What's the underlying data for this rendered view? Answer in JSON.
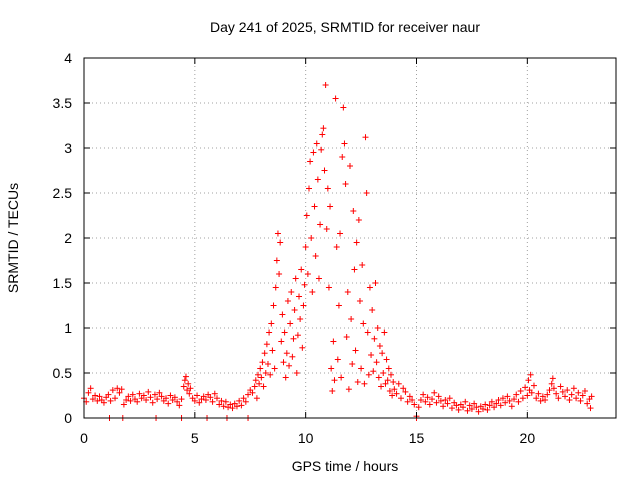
{
  "chart_data": {
    "type": "scatter",
    "title": "Day 241 of 2025, SRMTID for receiver naur",
    "xlabel": "GPS time / hours",
    "ylabel": "SRMTID / TECUs",
    "xlim": [
      0,
      24
    ],
    "ylim": [
      0,
      4
    ],
    "xticks": [
      0,
      5,
      10,
      15,
      20
    ],
    "xtick_labels": [
      "0",
      "5",
      "10",
      "15",
      "20"
    ],
    "yticks": [
      0,
      0.5,
      1,
      1.5,
      2,
      2.5,
      3,
      3.5,
      4
    ],
    "ytick_labels": [
      "0",
      "0.5",
      "1",
      "1.5",
      "2",
      "2.5",
      "3",
      "3.5",
      "4"
    ],
    "grid": true,
    "marker": "plus",
    "marker_color": "#ff0000",
    "series": [
      {
        "name": "SRMTID",
        "points": [
          [
            0.0,
            0.22
          ],
          [
            0.1,
            0.18
          ],
          [
            0.2,
            0.28
          ],
          [
            0.3,
            0.33
          ],
          [
            0.4,
            0.21
          ],
          [
            0.5,
            0.25
          ],
          [
            0.6,
            0.19
          ],
          [
            0.7,
            0.24
          ],
          [
            0.8,
            0.2
          ],
          [
            0.9,
            0.17
          ],
          [
            1.0,
            0.23
          ],
          [
            1.1,
            0.26
          ],
          [
            1.2,
            0.19
          ],
          [
            1.3,
            0.31
          ],
          [
            1.4,
            0.22
          ],
          [
            1.5,
            0.33
          ],
          [
            1.6,
            0.28
          ],
          [
            1.7,
            0.32
          ],
          [
            1.8,
            0.15
          ],
          [
            1.9,
            0.2
          ],
          [
            2.0,
            0.24
          ],
          [
            2.1,
            0.19
          ],
          [
            2.2,
            0.26
          ],
          [
            2.3,
            0.21
          ],
          [
            2.4,
            0.18
          ],
          [
            2.5,
            0.27
          ],
          [
            2.6,
            0.22
          ],
          [
            2.7,
            0.25
          ],
          [
            2.8,
            0.2
          ],
          [
            2.9,
            0.29
          ],
          [
            3.0,
            0.23
          ],
          [
            3.1,
            0.17
          ],
          [
            3.2,
            0.26
          ],
          [
            3.3,
            0.21
          ],
          [
            3.4,
            0.28
          ],
          [
            3.5,
            0.24
          ],
          [
            3.6,
            0.19
          ],
          [
            3.7,
            0.22
          ],
          [
            3.8,
            0.16
          ],
          [
            3.9,
            0.25
          ],
          [
            4.0,
            0.2
          ],
          [
            4.1,
            0.23
          ],
          [
            4.2,
            0.18
          ],
          [
            4.3,
            0.14
          ],
          [
            4.4,
            0.21
          ],
          [
            4.5,
            0.35
          ],
          [
            4.55,
            0.42
          ],
          [
            4.6,
            0.46
          ],
          [
            4.65,
            0.31
          ],
          [
            4.7,
            0.38
          ],
          [
            4.75,
            0.27
          ],
          [
            4.8,
            0.33
          ],
          [
            4.9,
            0.22
          ],
          [
            5.0,
            0.19
          ],
          [
            5.1,
            0.25
          ],
          [
            5.2,
            0.17
          ],
          [
            5.3,
            0.21
          ],
          [
            5.4,
            0.24
          ],
          [
            5.5,
            0.2
          ],
          [
            5.6,
            0.26
          ],
          [
            5.7,
            0.23
          ],
          [
            5.8,
            0.18
          ],
          [
            5.9,
            0.27
          ],
          [
            6.0,
            0.22
          ],
          [
            6.1,
            0.15
          ],
          [
            6.2,
            0.19
          ],
          [
            6.3,
            0.13
          ],
          [
            6.4,
            0.18
          ],
          [
            6.5,
            0.12
          ],
          [
            6.6,
            0.15
          ],
          [
            6.7,
            0.11
          ],
          [
            6.8,
            0.16
          ],
          [
            6.9,
            0.13
          ],
          [
            7.0,
            0.19
          ],
          [
            7.1,
            0.14
          ],
          [
            7.2,
            0.22
          ],
          [
            7.3,
            0.18
          ],
          [
            7.4,
            0.26
          ],
          [
            7.5,
            0.31
          ],
          [
            7.6,
            0.28
          ],
          [
            7.7,
            0.35
          ],
          [
            7.75,
            0.42
          ],
          [
            7.8,
            0.22
          ],
          [
            7.85,
            0.48
          ],
          [
            7.9,
            0.38
          ],
          [
            7.95,
            0.55
          ],
          [
            8.0,
            0.45
          ],
          [
            8.05,
            0.62
          ],
          [
            8.1,
            0.35
          ],
          [
            8.15,
            0.72
          ],
          [
            8.2,
            0.5
          ],
          [
            8.25,
            0.82
          ],
          [
            8.3,
            0.6
          ],
          [
            8.35,
            0.95
          ],
          [
            8.4,
            0.48
          ],
          [
            8.45,
            1.05
          ],
          [
            8.5,
            0.75
          ],
          [
            8.55,
            1.25
          ],
          [
            8.6,
            0.55
          ],
          [
            8.65,
            1.45
          ],
          [
            8.7,
            1.75
          ],
          [
            8.75,
            2.05
          ],
          [
            8.8,
            1.6
          ],
          [
            8.85,
            1.95
          ],
          [
            8.9,
            0.85
          ],
          [
            8.95,
            1.15
          ],
          [
            9.0,
            0.62
          ],
          [
            9.05,
            0.95
          ],
          [
            9.1,
            0.45
          ],
          [
            9.15,
            0.72
          ],
          [
            9.2,
            1.3
          ],
          [
            9.25,
            0.58
          ],
          [
            9.3,
            1.05
          ],
          [
            9.35,
            1.4
          ],
          [
            9.4,
            0.68
          ],
          [
            9.45,
            0.88
          ],
          [
            9.5,
            1.2
          ],
          [
            9.55,
            1.55
          ],
          [
            9.6,
            0.5
          ],
          [
            9.65,
            0.92
          ],
          [
            9.7,
            1.35
          ],
          [
            9.75,
            1.1
          ],
          [
            9.8,
            1.65
          ],
          [
            9.85,
            0.78
          ],
          [
            9.9,
            1.25
          ],
          [
            9.95,
            1.48
          ],
          [
            10.0,
            1.9
          ],
          [
            10.05,
            2.25
          ],
          [
            10.1,
            1.6
          ],
          [
            10.15,
            2.55
          ],
          [
            10.2,
            2.85
          ],
          [
            10.25,
            2.0
          ],
          [
            10.3,
            1.4
          ],
          [
            10.35,
            2.95
          ],
          [
            10.4,
            2.35
          ],
          [
            10.45,
            1.8
          ],
          [
            10.5,
            3.05
          ],
          [
            10.55,
            2.65
          ],
          [
            10.6,
            1.55
          ],
          [
            10.65,
            2.15
          ],
          [
            10.7,
            2.98
          ],
          [
            10.75,
            3.15
          ],
          [
            10.8,
            3.22
          ],
          [
            10.85,
            2.75
          ],
          [
            10.9,
            3.7
          ],
          [
            10.95,
            2.1
          ],
          [
            11.0,
            2.55
          ],
          [
            11.05,
            1.45
          ],
          [
            11.1,
            2.35
          ],
          [
            11.15,
            0.55
          ],
          [
            11.2,
            0.3
          ],
          [
            11.25,
            0.85
          ],
          [
            11.3,
            0.42
          ],
          [
            11.35,
            3.55
          ],
          [
            11.4,
            1.9
          ],
          [
            11.45,
            0.65
          ],
          [
            11.5,
            1.25
          ],
          [
            11.55,
            2.05
          ],
          [
            11.6,
            0.45
          ],
          [
            11.65,
            2.9
          ],
          [
            11.7,
            3.45
          ],
          [
            11.75,
            3.05
          ],
          [
            11.8,
            2.6
          ],
          [
            11.85,
            0.9
          ],
          [
            11.9,
            1.4
          ],
          [
            11.95,
            0.32
          ],
          [
            12.0,
            2.8
          ],
          [
            12.05,
            1.1
          ],
          [
            12.1,
            0.6
          ],
          [
            12.15,
            2.3
          ],
          [
            12.2,
            1.65
          ],
          [
            12.25,
            0.75
          ],
          [
            12.3,
            1.95
          ],
          [
            12.35,
            0.4
          ],
          [
            12.4,
            2.2
          ],
          [
            12.45,
            1.3
          ],
          [
            12.5,
            0.55
          ],
          [
            12.55,
            1.7
          ],
          [
            12.6,
            1.05
          ],
          [
            12.65,
            0.38
          ],
          [
            12.7,
            3.12
          ],
          [
            12.75,
            2.5
          ],
          [
            12.8,
            0.95
          ],
          [
            12.85,
            0.48
          ],
          [
            12.9,
            1.45
          ],
          [
            12.95,
            0.7
          ],
          [
            13.0,
            1.2
          ],
          [
            13.05,
            0.52
          ],
          [
            13.1,
            0.88
          ],
          [
            13.15,
            1.5
          ],
          [
            13.2,
            0.62
          ],
          [
            13.25,
            1.0
          ],
          [
            13.3,
            0.45
          ],
          [
            13.35,
            0.8
          ],
          [
            13.4,
            0.35
          ],
          [
            13.45,
            0.72
          ],
          [
            13.5,
            0.5
          ],
          [
            13.55,
            0.95
          ],
          [
            13.6,
            0.38
          ],
          [
            13.65,
            0.65
          ],
          [
            13.7,
            0.42
          ],
          [
            13.75,
            0.55
          ],
          [
            13.8,
            0.3
          ],
          [
            13.85,
            0.48
          ],
          [
            13.9,
            0.25
          ],
          [
            13.95,
            0.4
          ],
          [
            14.0,
            0.32
          ],
          [
            14.1,
            0.27
          ],
          [
            14.2,
            0.38
          ],
          [
            14.3,
            0.22
          ],
          [
            14.4,
            0.33
          ],
          [
            14.5,
            0.29
          ],
          [
            14.6,
            0.18
          ],
          [
            14.7,
            0.24
          ],
          [
            14.8,
            0.2
          ],
          [
            14.9,
            0.15
          ],
          [
            15.0,
            0.02
          ],
          [
            15.1,
            0.12
          ],
          [
            15.2,
            0.2
          ],
          [
            15.3,
            0.26
          ],
          [
            15.4,
            0.18
          ],
          [
            15.5,
            0.23
          ],
          [
            15.6,
            0.15
          ],
          [
            15.7,
            0.21
          ],
          [
            15.8,
            0.28
          ],
          [
            15.9,
            0.17
          ],
          [
            16.0,
            0.24
          ],
          [
            16.1,
            0.19
          ],
          [
            16.2,
            0.13
          ],
          [
            16.3,
            0.2
          ],
          [
            16.4,
            0.16
          ],
          [
            16.5,
            0.22
          ],
          [
            16.6,
            0.11
          ],
          [
            16.7,
            0.17
          ],
          [
            16.8,
            0.14
          ],
          [
            16.9,
            0.09
          ],
          [
            17.0,
            0.15
          ],
          [
            17.1,
            0.12
          ],
          [
            17.2,
            0.18
          ],
          [
            17.3,
            0.08
          ],
          [
            17.4,
            0.14
          ],
          [
            17.5,
            0.1
          ],
          [
            17.6,
            0.16
          ],
          [
            17.7,
            0.12
          ],
          [
            17.8,
            0.07
          ],
          [
            17.9,
            0.13
          ],
          [
            18.0,
            0.1
          ],
          [
            18.1,
            0.15
          ],
          [
            18.2,
            0.09
          ],
          [
            18.3,
            0.14
          ],
          [
            18.4,
            0.18
          ],
          [
            18.5,
            0.12
          ],
          [
            18.6,
            0.16
          ],
          [
            18.7,
            0.2
          ],
          [
            18.8,
            0.14
          ],
          [
            18.9,
            0.22
          ],
          [
            19.0,
            0.17
          ],
          [
            19.1,
            0.24
          ],
          [
            19.2,
            0.19
          ],
          [
            19.3,
            0.13
          ],
          [
            19.4,
            0.21
          ],
          [
            19.5,
            0.26
          ],
          [
            19.6,
            0.18
          ],
          [
            19.7,
            0.3
          ],
          [
            19.8,
            0.22
          ],
          [
            19.9,
            0.34
          ],
          [
            20.0,
            0.25
          ],
          [
            20.05,
            0.42
          ],
          [
            20.1,
            0.31
          ],
          [
            20.15,
            0.48
          ],
          [
            20.2,
            0.28
          ],
          [
            20.3,
            0.36
          ],
          [
            20.4,
            0.22
          ],
          [
            20.5,
            0.27
          ],
          [
            20.6,
            0.19
          ],
          [
            20.7,
            0.24
          ],
          [
            20.8,
            0.2
          ],
          [
            20.9,
            0.26
          ],
          [
            21.0,
            0.31
          ],
          [
            21.1,
            0.38
          ],
          [
            21.15,
            0.44
          ],
          [
            21.2,
            0.33
          ],
          [
            21.3,
            0.27
          ],
          [
            21.4,
            0.22
          ],
          [
            21.5,
            0.35
          ],
          [
            21.6,
            0.29
          ],
          [
            21.7,
            0.24
          ],
          [
            21.8,
            0.31
          ],
          [
            21.9,
            0.2
          ],
          [
            22.0,
            0.26
          ],
          [
            22.1,
            0.33
          ],
          [
            22.2,
            0.22
          ],
          [
            22.3,
            0.28
          ],
          [
            22.4,
            0.19
          ],
          [
            22.5,
            0.25
          ],
          [
            22.6,
            0.3
          ],
          [
            22.7,
            0.16
          ],
          [
            22.8,
            0.21
          ],
          [
            22.85,
            0.11
          ],
          [
            22.9,
            0.24
          ],
          [
            1.15,
            0.0
          ],
          [
            1.75,
            0.0
          ],
          [
            3.25,
            0.0
          ],
          [
            4.4,
            0.0
          ],
          [
            5.55,
            0.0
          ],
          [
            6.45,
            0.0
          ],
          [
            7.4,
            0.0
          ],
          [
            15.0,
            0.0
          ]
        ]
      }
    ]
  }
}
